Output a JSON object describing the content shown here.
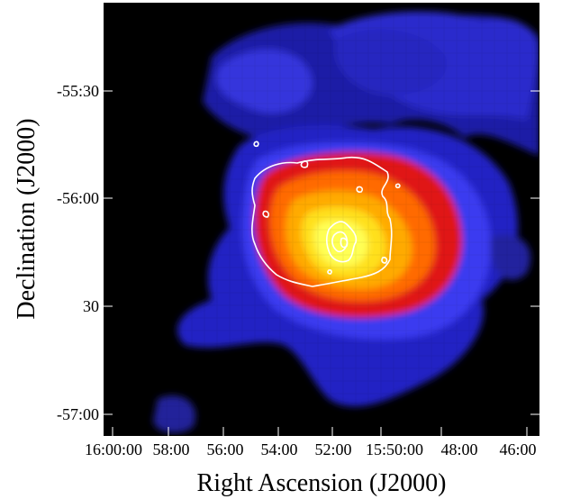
{
  "figure": {
    "xlabel": "Right Ascension (J2000)",
    "ylabel": "Declination (J2000)",
    "xticks": [
      "16:00:00",
      "58:00",
      "56:00",
      "54:00",
      "52:00",
      "15:50:00",
      "48:00",
      "46:00"
    ],
    "yticks": [
      "-55:30",
      "-56:00",
      "30",
      "-57:00"
    ],
    "colormap": [
      "#000000",
      "#1a1aa0",
      "#3a3af0",
      "#ff2a2a",
      "#ff9a00",
      "#ffff30"
    ],
    "contour_color": "#ffffff",
    "frame_color": "#000000"
  }
}
